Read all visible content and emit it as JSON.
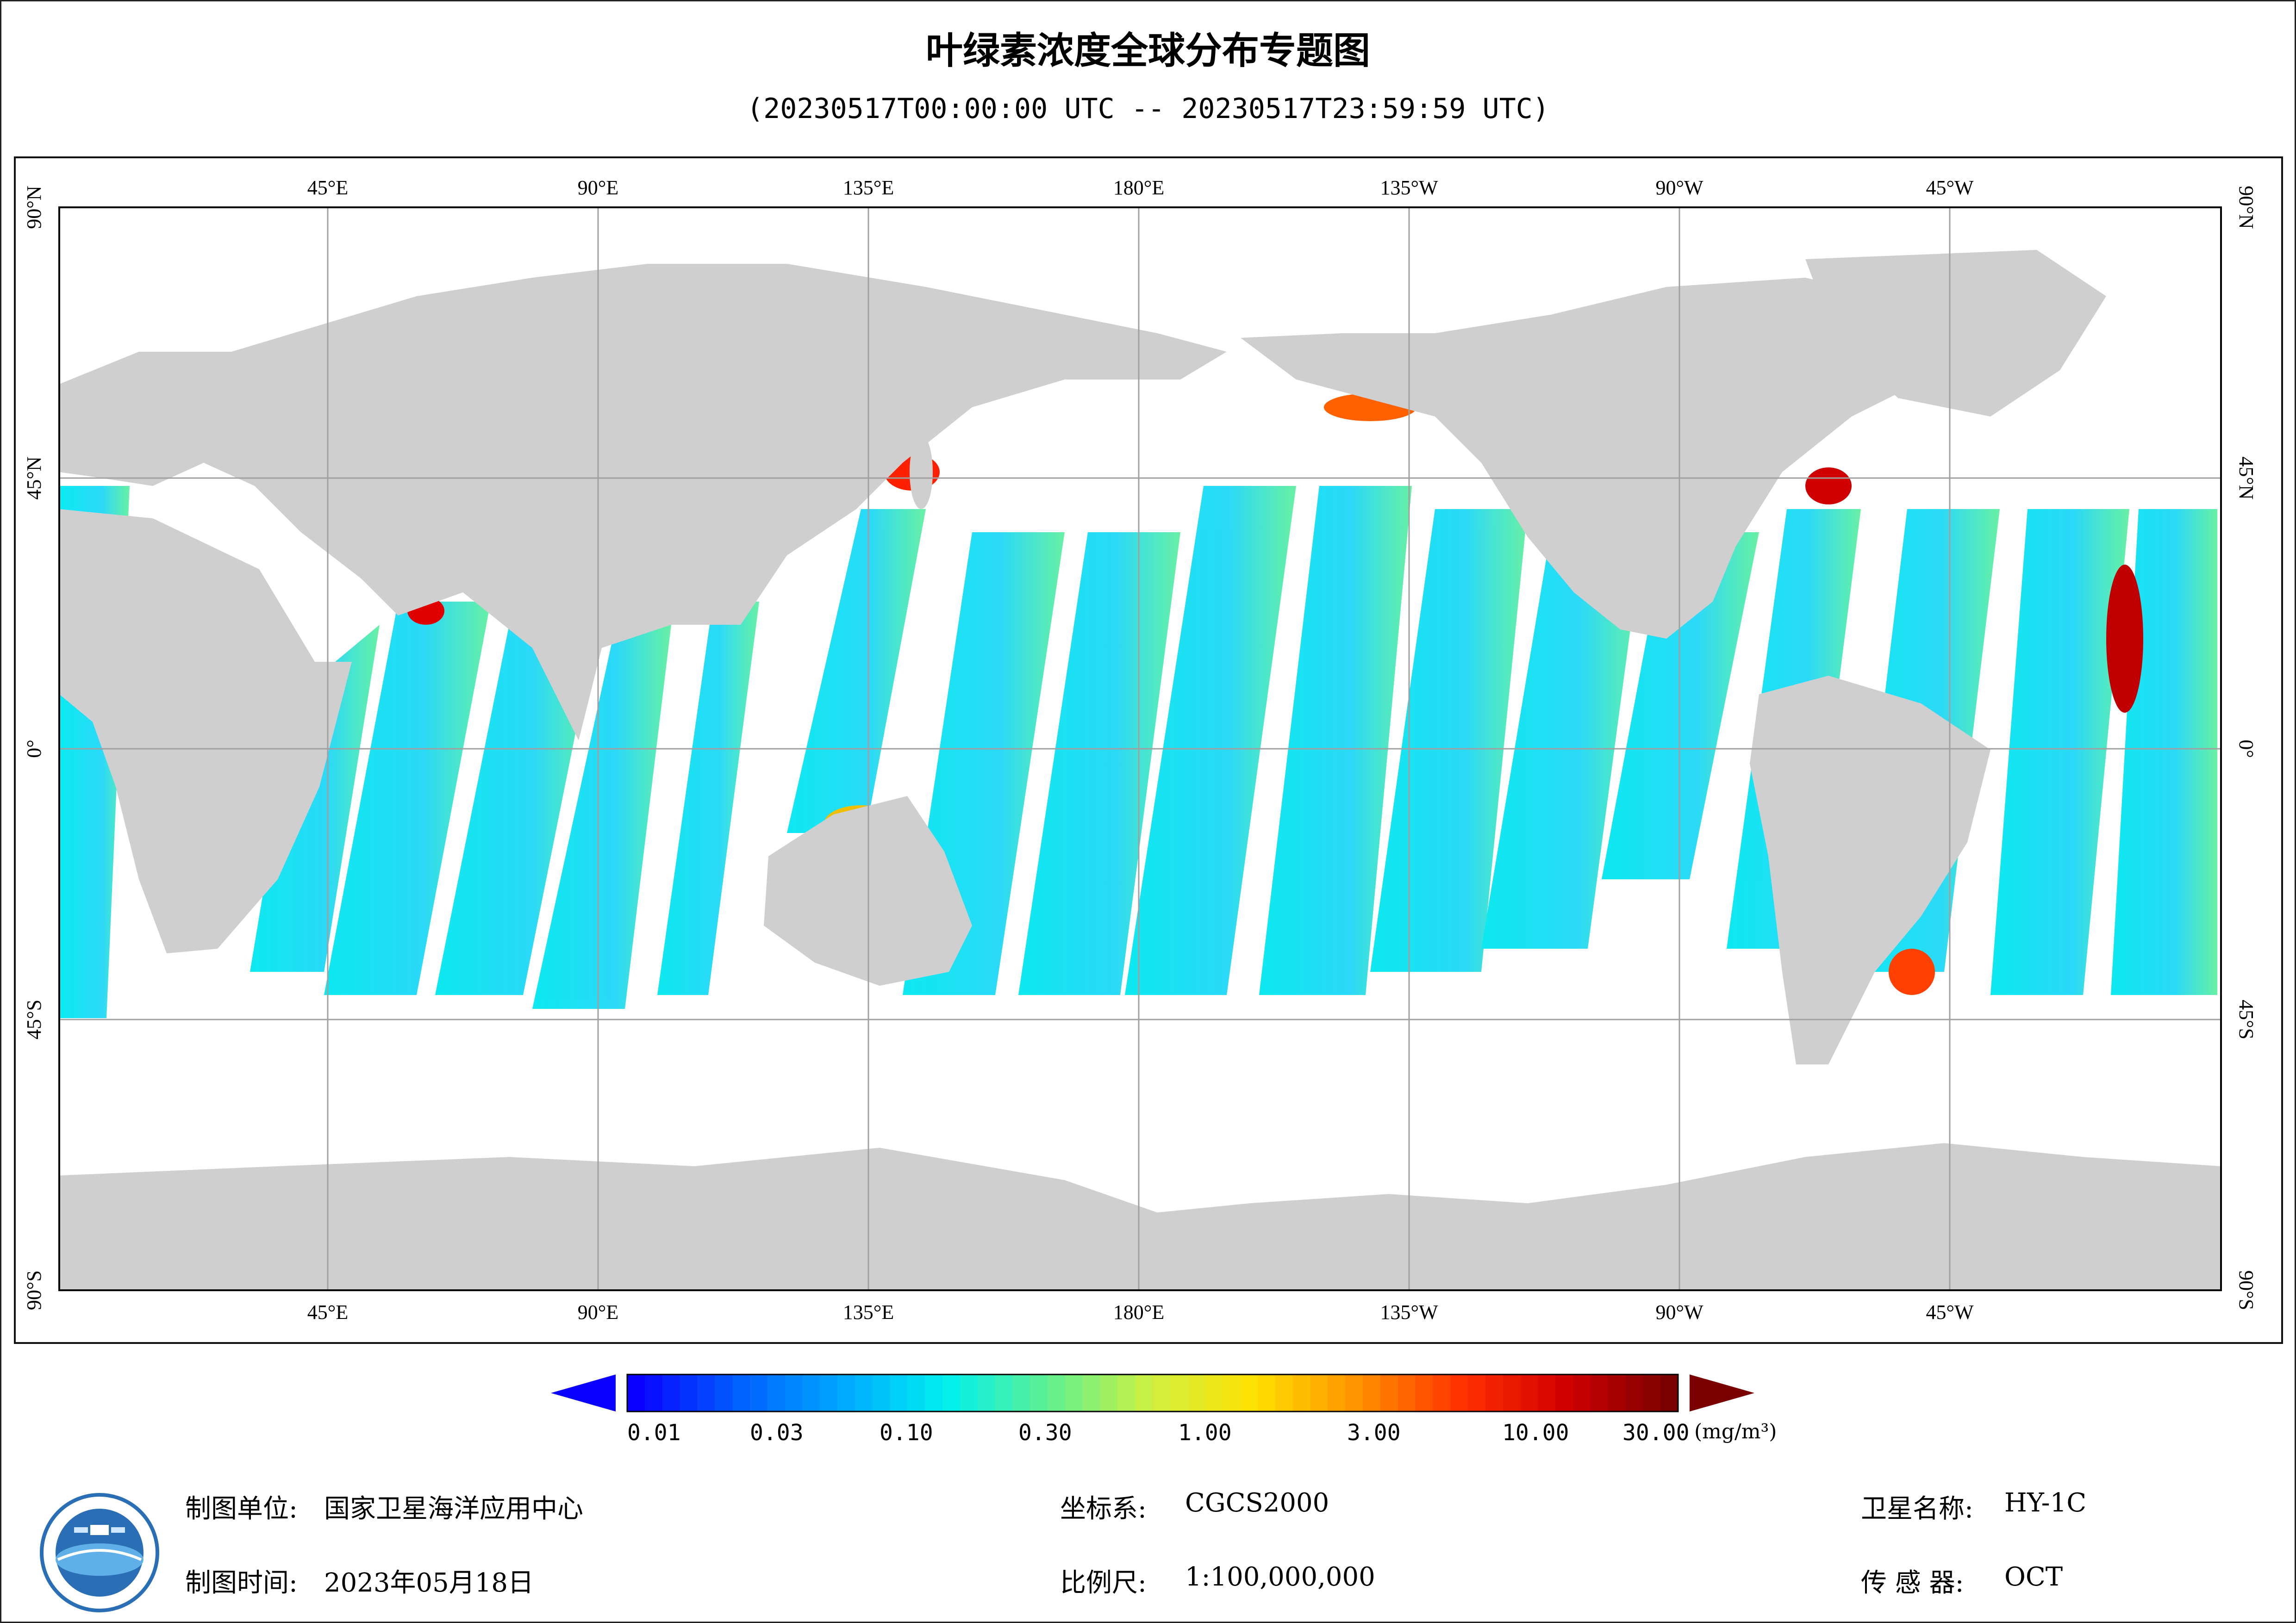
{
  "title": "叶绿素浓度全球分布专题图",
  "subtitle": "(20230517T00:00:00 UTC -- 20230517T23:59:59 UTC)",
  "lon_ticks": [
    "45°E",
    "90°E",
    "135°E",
    "180°E",
    "135°W",
    "90°W",
    "45°W"
  ],
  "lat_ticks": [
    "90°N",
    "45°N",
    "0°",
    "45°S",
    "90°S"
  ],
  "colorbar": {
    "labels": [
      "0.01",
      "0.03",
      "0.10",
      "0.30",
      "1.00",
      "3.00",
      "10.00",
      "30.00"
    ],
    "unit": "(mg/m³)",
    "colors": [
      "#0a00ff",
      "#0060ff",
      "#00a8ff",
      "#00f0f0",
      "#60f090",
      "#d0f040",
      "#ffe000",
      "#ff9000",
      "#ff3000",
      "#d00000",
      "#7a0000"
    ]
  },
  "colors": {
    "land": "#cfcfcf",
    "ocean": "#ffffff",
    "grid": "#a0a0a0"
  },
  "footer": {
    "unit_label": "制图单位:",
    "unit_value": "国家卫星海洋应用中心",
    "time_label": "制图时间:",
    "time_value": "2023年05月18日",
    "crs_label": "坐标系:",
    "crs_value": "CGCS2000",
    "scale_label": "比例尺:",
    "scale_value": "1:100,000,000",
    "sat_label": "卫星名称:",
    "sat_value": "HY-1C",
    "sensor_label": "传 感 器:",
    "sensor_value": "OCT"
  }
}
